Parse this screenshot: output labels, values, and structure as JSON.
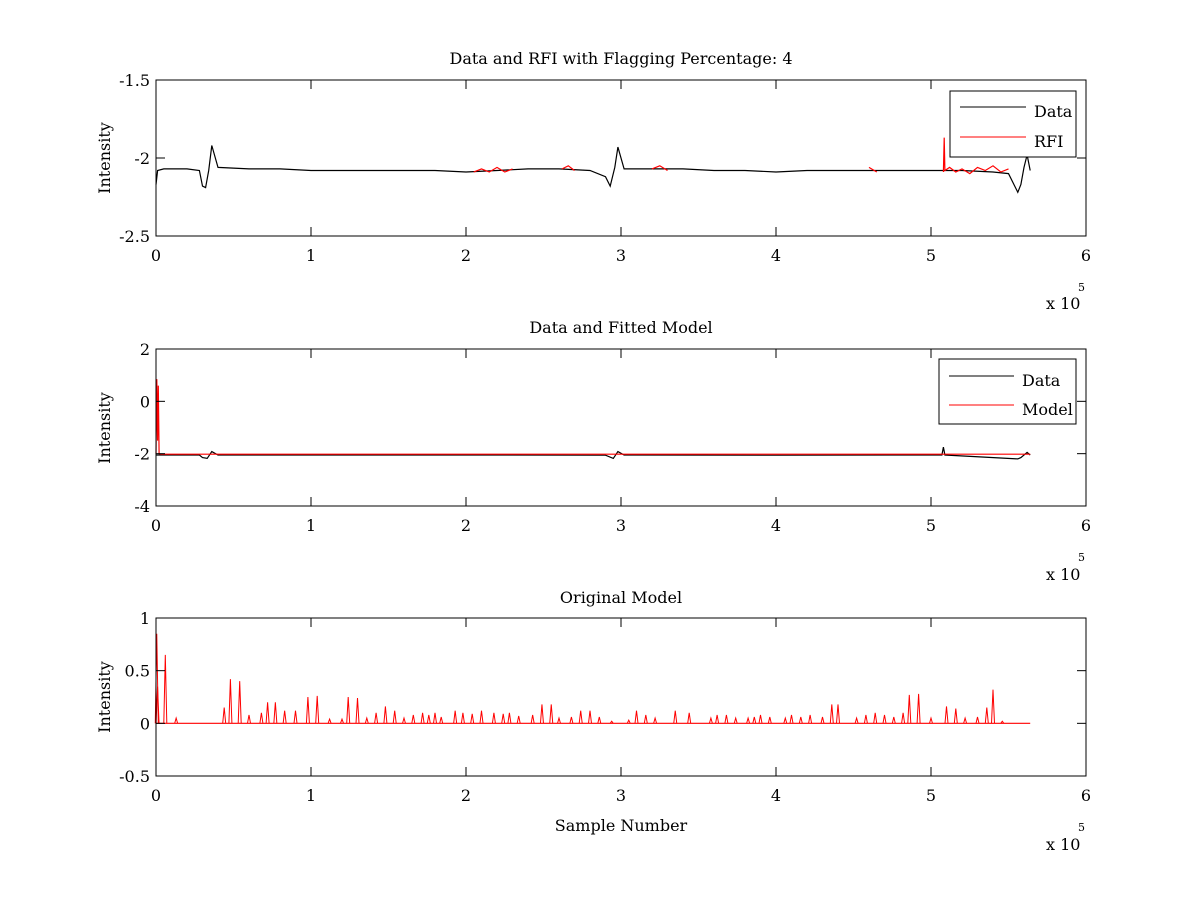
{
  "colors": {
    "data": "#000000",
    "rfi": "#ff0000",
    "model": "#ff0000",
    "axes": "#000000"
  },
  "chart_data": [
    {
      "type": "line",
      "title": "Data and RFI with Flagging Percentage: 4",
      "xlabel": "",
      "ylabel": "Intensity",
      "xlim": [
        0,
        6
      ],
      "ylim": [
        -2.5,
        -1.5
      ],
      "x_multiplier": "x 10",
      "x_multiplier_exp": "5",
      "xticks": [
        "0",
        "1",
        "2",
        "3",
        "4",
        "5",
        "6"
      ],
      "yticks": [
        "-2.5",
        "-2",
        "-1.5"
      ],
      "legend": {
        "position": "top-right",
        "entries": [
          "Data",
          "RFI"
        ]
      },
      "series": [
        {
          "name": "Data",
          "color": "#000000",
          "x": [
            0.0,
            0.01,
            0.05,
            0.1,
            0.2,
            0.28,
            0.3,
            0.32,
            0.34,
            0.36,
            0.4,
            0.6,
            0.8,
            1.0,
            1.2,
            1.4,
            1.6,
            1.8,
            2.0,
            2.2,
            2.4,
            2.6,
            2.8,
            2.9,
            2.93,
            2.96,
            2.98,
            3.02,
            3.2,
            3.4,
            3.6,
            3.8,
            4.0,
            4.2,
            4.4,
            4.6,
            4.8,
            5.0,
            5.2,
            5.4,
            5.5,
            5.56,
            5.58,
            5.6,
            5.62,
            5.64
          ],
          "y": [
            -2.17,
            -2.08,
            -2.07,
            -2.07,
            -2.07,
            -2.08,
            -2.18,
            -2.19,
            -2.08,
            -1.92,
            -2.06,
            -2.07,
            -2.07,
            -2.08,
            -2.08,
            -2.08,
            -2.08,
            -2.08,
            -2.09,
            -2.08,
            -2.07,
            -2.07,
            -2.08,
            -2.12,
            -2.18,
            -2.06,
            -1.93,
            -2.07,
            -2.07,
            -2.07,
            -2.08,
            -2.08,
            -2.09,
            -2.08,
            -2.08,
            -2.08,
            -2.08,
            -2.08,
            -2.08,
            -2.09,
            -2.1,
            -2.22,
            -2.17,
            -2.06,
            -1.98,
            -2.08
          ]
        },
        {
          "name": "RFI",
          "color": "#ff0000",
          "segments": [
            {
              "x": [
                2.05,
                2.1,
                2.15,
                2.2,
                2.25,
                2.3
              ],
              "y": [
                -2.09,
                -2.07,
                -2.09,
                -2.06,
                -2.09,
                -2.07
              ]
            },
            {
              "x": [
                2.62,
                2.66,
                2.7
              ],
              "y": [
                -2.07,
                -2.05,
                -2.08
              ]
            },
            {
              "x": [
                3.2,
                3.25,
                3.3
              ],
              "y": [
                -2.07,
                -2.05,
                -2.08
              ]
            },
            {
              "x": [
                4.6,
                4.65
              ],
              "y": [
                -2.06,
                -2.09
              ]
            },
            {
              "x": [
                5.08,
                5.085,
                5.09,
                5.12,
                5.16,
                5.2,
                5.25,
                5.3,
                5.35,
                5.4,
                5.45,
                5.5
              ],
              "y": [
                -2.09,
                -1.87,
                -2.08,
                -2.06,
                -2.09,
                -2.07,
                -2.1,
                -2.06,
                -2.08,
                -2.05,
                -2.09,
                -2.07
              ]
            }
          ]
        }
      ]
    },
    {
      "type": "line",
      "title": "Data and Fitted Model",
      "xlabel": "",
      "ylabel": "Intensity",
      "xlim": [
        0,
        6
      ],
      "ylim": [
        -4,
        2
      ],
      "x_multiplier": "x 10",
      "x_multiplier_exp": "5",
      "xticks": [
        "0",
        "1",
        "2",
        "3",
        "4",
        "5",
        "6"
      ],
      "yticks": [
        "-4",
        "-2",
        "0",
        "2"
      ],
      "legend": {
        "position": "top-right",
        "entries": [
          "Data",
          "Model"
        ]
      },
      "series": [
        {
          "name": "Data",
          "color": "#000000",
          "x": [
            0.0,
            0.28,
            0.3,
            0.33,
            0.36,
            0.4,
            1.0,
            2.0,
            2.9,
            2.95,
            2.98,
            3.02,
            4.0,
            5.0,
            5.07,
            5.08,
            5.09,
            5.56,
            5.58,
            5.62,
            5.64
          ],
          "y": [
            -2.05,
            -2.05,
            -2.15,
            -2.18,
            -1.92,
            -2.05,
            -2.05,
            -2.05,
            -2.06,
            -2.18,
            -1.92,
            -2.05,
            -2.06,
            -2.05,
            -2.05,
            -1.75,
            -2.05,
            -2.2,
            -2.15,
            -1.95,
            -2.05
          ]
        },
        {
          "name": "Model",
          "color": "#ff0000",
          "x": [
            0.0,
            0.005,
            0.01,
            0.015,
            0.02,
            0.03,
            1.0,
            2.0,
            3.0,
            4.0,
            5.0,
            5.64
          ],
          "y": [
            -2.0,
            0.85,
            -1.5,
            0.6,
            -2.0,
            -2.02,
            -2.02,
            -2.02,
            -2.02,
            -2.02,
            -2.02,
            -2.02
          ]
        }
      ]
    },
    {
      "type": "line",
      "title": "Original Model",
      "xlabel": "Sample Number",
      "ylabel": "Intensity",
      "xlim": [
        0,
        6
      ],
      "ylim": [
        -0.5,
        1
      ],
      "x_multiplier": "x 10",
      "x_multiplier_exp": "5",
      "xticks": [
        "0",
        "1",
        "2",
        "3",
        "4",
        "5",
        "6"
      ],
      "yticks": [
        "-0.5",
        "0",
        "0.5",
        "1"
      ],
      "series": [
        {
          "name": "Model",
          "color": "#ff0000",
          "baseline": 0,
          "x_end": 5.64,
          "spikes": [
            [
              0.005,
              0.85
            ],
            [
              0.01,
              0.35
            ],
            [
              0.06,
              0.65
            ],
            [
              0.13,
              0.05
            ],
            [
              0.44,
              0.15
            ],
            [
              0.48,
              0.42
            ],
            [
              0.54,
              0.4
            ],
            [
              0.6,
              0.08
            ],
            [
              0.68,
              0.1
            ],
            [
              0.72,
              0.2
            ],
            [
              0.77,
              0.2
            ],
            [
              0.83,
              0.12
            ],
            [
              0.9,
              0.12
            ],
            [
              0.98,
              0.25
            ],
            [
              1.04,
              0.26
            ],
            [
              1.12,
              0.04
            ],
            [
              1.2,
              0.04
            ],
            [
              1.24,
              0.25
            ],
            [
              1.3,
              0.24
            ],
            [
              1.36,
              0.05
            ],
            [
              1.42,
              0.1
            ],
            [
              1.48,
              0.16
            ],
            [
              1.54,
              0.12
            ],
            [
              1.6,
              0.05
            ],
            [
              1.66,
              0.08
            ],
            [
              1.72,
              0.1
            ],
            [
              1.76,
              0.08
            ],
            [
              1.8,
              0.1
            ],
            [
              1.84,
              0.06
            ],
            [
              1.93,
              0.12
            ],
            [
              1.98,
              0.1
            ],
            [
              2.04,
              0.09
            ],
            [
              2.1,
              0.12
            ],
            [
              2.18,
              0.1
            ],
            [
              2.24,
              0.09
            ],
            [
              2.28,
              0.1
            ],
            [
              2.34,
              0.07
            ],
            [
              2.43,
              0.08
            ],
            [
              2.49,
              0.18
            ],
            [
              2.55,
              0.18
            ],
            [
              2.6,
              0.05
            ],
            [
              2.68,
              0.06
            ],
            [
              2.74,
              0.12
            ],
            [
              2.8,
              0.12
            ],
            [
              2.86,
              0.06
            ],
            [
              2.94,
              0.02
            ],
            [
              3.05,
              0.03
            ],
            [
              3.1,
              0.12
            ],
            [
              3.16,
              0.08
            ],
            [
              3.22,
              0.05
            ],
            [
              3.35,
              0.12
            ],
            [
              3.44,
              0.1
            ],
            [
              3.58,
              0.05
            ],
            [
              3.62,
              0.08
            ],
            [
              3.68,
              0.08
            ],
            [
              3.74,
              0.05
            ],
            [
              3.82,
              0.05
            ],
            [
              3.86,
              0.06
            ],
            [
              3.9,
              0.08
            ],
            [
              3.96,
              0.06
            ],
            [
              4.06,
              0.05
            ],
            [
              4.1,
              0.08
            ],
            [
              4.16,
              0.06
            ],
            [
              4.22,
              0.08
            ],
            [
              4.3,
              0.06
            ],
            [
              4.36,
              0.18
            ],
            [
              4.4,
              0.18
            ],
            [
              4.52,
              0.05
            ],
            [
              4.58,
              0.08
            ],
            [
              4.64,
              0.1
            ],
            [
              4.7,
              0.08
            ],
            [
              4.76,
              0.06
            ],
            [
              4.82,
              0.1
            ],
            [
              4.86,
              0.27
            ],
            [
              4.92,
              0.28
            ],
            [
              5.0,
              0.05
            ],
            [
              5.1,
              0.16
            ],
            [
              5.16,
              0.14
            ],
            [
              5.22,
              0.05
            ],
            [
              5.3,
              0.06
            ],
            [
              5.36,
              0.15
            ],
            [
              5.4,
              0.32
            ],
            [
              5.46,
              0.02
            ]
          ]
        }
      ]
    }
  ]
}
